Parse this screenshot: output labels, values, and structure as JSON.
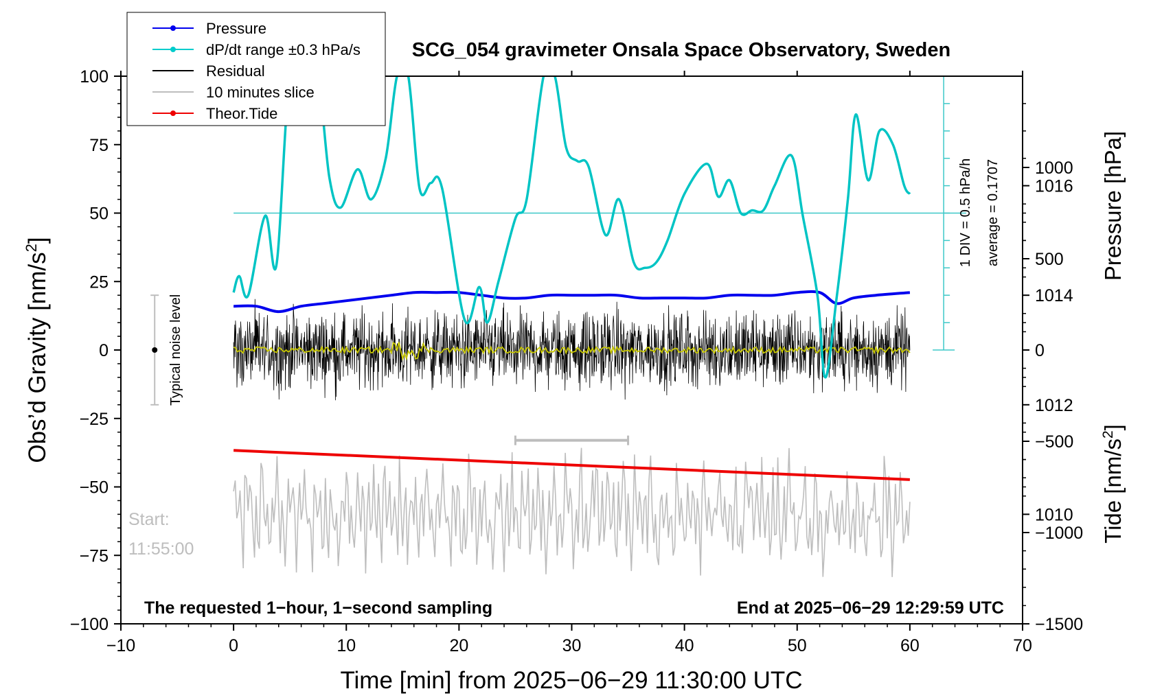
{
  "chart_data": {
    "type": "line",
    "title": "SCG_054 gravimeter Onsala Space Observatory, Sweden",
    "xlabel": "Time [min] from 2025−06−29 11:30:00 UTC",
    "ylabel_left_base": "Obs’d Gravity [nm/s",
    "ylabel_left_sup": "2",
    "ylabel_left_end": "]",
    "ylabel_right_pressure": "Pressure [hPa]",
    "ylabel_right_tide_base": "Tide [nm/s",
    "ylabel_right_tide_sup": "2",
    "ylabel_right_tide_end": "]",
    "xlim": [
      -10,
      70
    ],
    "ylim": [
      -100,
      100
    ],
    "pressure_ylim": [
      1008,
      1018
    ],
    "tide_ylim": [
      -1500,
      1500
    ],
    "x_ticks": [
      -10,
      0,
      10,
      20,
      30,
      40,
      50,
      60,
      70
    ],
    "x_tick_labels": [
      "−10",
      "0",
      "10",
      "20",
      "30",
      "40",
      "50",
      "60",
      "70"
    ],
    "y_ticks": [
      -100,
      -75,
      -50,
      -25,
      0,
      25,
      50,
      75,
      100
    ],
    "y_tick_labels": [
      "−100",
      "−75",
      "−50",
      "−25",
      "0",
      "25",
      "50",
      "75",
      "100"
    ],
    "pressure_ticks": [
      1010,
      1012,
      1014,
      1016
    ],
    "pressure_tick_labels": [
      "1010",
      "1012",
      "1014",
      "1016"
    ],
    "tide_ticks": [
      -1500,
      -1000,
      -500,
      0,
      500,
      1000
    ],
    "tide_tick_labels": [
      "−1500",
      "−1000",
      "−500",
      "0",
      "500",
      "1000"
    ],
    "legend_position": "top-left",
    "legend": [
      {
        "label": "Pressure",
        "color": "#0000ee",
        "marker": true
      },
      {
        "label": "dP/dt range ±0.3 hPa/s",
        "color": "#00cccc",
        "marker": true
      },
      {
        "label": "Residual",
        "color": "#000000",
        "marker": false
      },
      {
        "label": "10 minutes slice",
        "color": "#bdbdbd",
        "marker": false
      },
      {
        "label": "Theor.Tide",
        "color": "#ee0000",
        "marker": true
      }
    ],
    "series": [
      {
        "name": "Pressure",
        "axis": "pressure",
        "color": "#0000ee",
        "x": [
          0,
          2,
          4,
          6,
          8,
          10,
          12,
          14,
          16,
          18,
          20,
          22,
          24,
          26,
          28,
          30,
          32,
          34,
          36,
          38,
          40,
          42,
          44,
          46,
          48,
          50,
          52,
          53.5,
          55,
          57,
          60
        ],
        "y": [
          1013.8,
          1013.8,
          1013.7,
          1013.8,
          1013.85,
          1013.9,
          1013.95,
          1014.0,
          1014.05,
          1014.05,
          1014.05,
          1014.0,
          1013.95,
          1013.95,
          1014.0,
          1014.0,
          1014.0,
          1014.0,
          1013.95,
          1013.95,
          1013.95,
          1013.95,
          1014.0,
          1014.0,
          1014.0,
          1014.05,
          1014.05,
          1013.85,
          1013.95,
          1014.0,
          1014.05
        ]
      },
      {
        "name": "dP/dt range ±0.3 hPa/s",
        "axis": "left",
        "color": "#00c4c4",
        "x": [
          0,
          0.5,
          1.3,
          2.8,
          3.8,
          5,
          6.5,
          7.5,
          8.5,
          9.5,
          11,
          12.2,
          13.5,
          14.5,
          15.5,
          16.5,
          17.5,
          18.5,
          20.5,
          21.8,
          22.5,
          23.5,
          25,
          26,
          27.5,
          28.5,
          29.5,
          30.5,
          31.5,
          33,
          34.2,
          35.5,
          36.5,
          37.5,
          38.5,
          40,
          42,
          43,
          44,
          45,
          46,
          47,
          48,
          49.5,
          50.5,
          51.8,
          52.5,
          53.5,
          54.5,
          55.2,
          56.3,
          57.3,
          58.5,
          59.5,
          60
        ],
        "y": [
          21,
          27,
          20,
          49,
          31,
          100,
          100,
          100,
          63,
          52,
          66,
          55,
          70,
          100,
          100,
          59,
          61,
          59,
          11,
          23,
          10,
          25,
          48,
          55,
          100,
          100,
          74,
          69,
          67,
          42,
          55,
          32,
          30,
          32,
          40,
          57,
          68,
          56,
          62,
          50,
          51,
          51,
          60,
          71,
          49,
          20,
          -10,
          19,
          55,
          86,
          62,
          80,
          75,
          60,
          57
        ]
      },
      {
        "name": "Residual",
        "axis": "left",
        "color": "#000000",
        "x_range": [
          0,
          60
        ],
        "amplitude": 15
      },
      {
        "name": "10 minutes slice",
        "axis": "left",
        "color": "#bdbdbd",
        "x_range": [
          0,
          60
        ],
        "center": -60,
        "amplitude": 12
      },
      {
        "name": "Theor.Tide",
        "axis": "tide",
        "color": "#ee0000",
        "x": [
          0,
          60
        ],
        "y": [
          -550,
          -710
        ]
      }
    ],
    "annotations": {
      "dp_reference_line_value": 50,
      "pressure_div_label": "1 DIV = 0.5 hPa/h",
      "average_label": "average = 0.1707",
      "noise_label": "Typical noise level",
      "noise_bar_range": [
        -20,
        20
      ],
      "slice_bar_range": [
        25,
        35
      ],
      "slice_bar_y": -33,
      "start_label_1": "Start:",
      "start_label_2": "11:55:00",
      "bottom_left": "The requested 1−hour, 1−second sampling",
      "bottom_right": "End at 2025−06−29 12:29:59 UTC"
    }
  }
}
